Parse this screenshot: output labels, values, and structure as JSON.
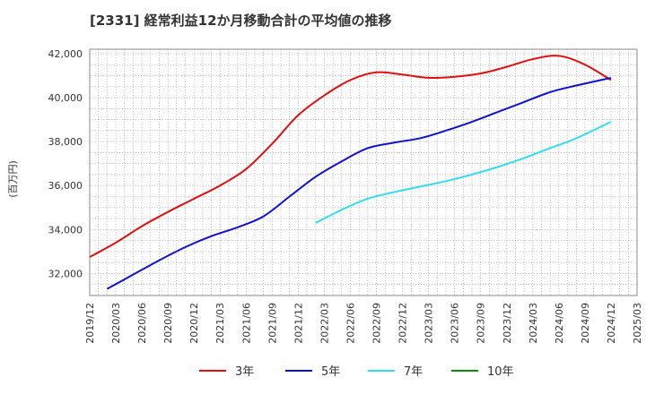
{
  "chart_data": {
    "type": "line",
    "title": "[2331]  経常利益12か月移動合計の平均値の推移",
    "xlabel": "",
    "ylabel": "(百万円)",
    "ylim": [
      31000,
      42200
    ],
    "y_ticks": [
      32000,
      34000,
      36000,
      38000,
      40000,
      42000
    ],
    "y_tick_labels": [
      "32,000",
      "34,000",
      "36,000",
      "38,000",
      "40,000",
      "42,000"
    ],
    "x_range": [
      "2019-12",
      "2025-03"
    ],
    "x_tick_labels": [
      "2019/12",
      "2020/03",
      "2020/06",
      "2020/09",
      "2020/12",
      "2021/03",
      "2021/06",
      "2021/09",
      "2021/12",
      "2022/03",
      "2022/06",
      "2022/09",
      "2022/12",
      "2023/03",
      "2023/06",
      "2023/09",
      "2023/12",
      "2024/03",
      "2024/06",
      "2024/09",
      "2024/12",
      "2025/03"
    ],
    "grid": true,
    "legend_position": "bottom",
    "series": [
      {
        "name": "3年",
        "color": "#dd1111",
        "points": [
          [
            "2019-12",
            32750
          ],
          [
            "2020-03",
            33400
          ],
          [
            "2020-06",
            34150
          ],
          [
            "2020-09",
            34800
          ],
          [
            "2020-12",
            35400
          ],
          [
            "2021-03",
            36000
          ],
          [
            "2021-06",
            36750
          ],
          [
            "2021-09",
            37900
          ],
          [
            "2021-12",
            39200
          ],
          [
            "2022-03",
            40100
          ],
          [
            "2022-06",
            40800
          ],
          [
            "2022-09",
            41150
          ],
          [
            "2022-12",
            41050
          ],
          [
            "2023-03",
            40900
          ],
          [
            "2023-06",
            40950
          ],
          [
            "2023-09",
            41100
          ],
          [
            "2023-12",
            41400
          ],
          [
            "2024-03",
            41750
          ],
          [
            "2024-06",
            41900
          ],
          [
            "2024-09",
            41500
          ],
          [
            "2024-12",
            40800
          ]
        ]
      },
      {
        "name": "5年",
        "color": "#1111cc",
        "points": [
          [
            "2020-02",
            31300
          ],
          [
            "2020-05",
            31950
          ],
          [
            "2020-08",
            32600
          ],
          [
            "2020-11",
            33200
          ],
          [
            "2021-02",
            33700
          ],
          [
            "2021-05",
            34100
          ],
          [
            "2021-08",
            34600
          ],
          [
            "2021-11",
            35500
          ],
          [
            "2022-02",
            36400
          ],
          [
            "2022-05",
            37100
          ],
          [
            "2022-08",
            37700
          ],
          [
            "2022-11",
            37950
          ],
          [
            "2023-02",
            38150
          ],
          [
            "2023-05",
            38500
          ],
          [
            "2023-08",
            38900
          ],
          [
            "2023-11",
            39350
          ],
          [
            "2024-02",
            39800
          ],
          [
            "2024-05",
            40250
          ],
          [
            "2024-08",
            40550
          ],
          [
            "2024-12",
            40900
          ]
        ]
      },
      {
        "name": "7年",
        "color": "#33ddee",
        "points": [
          [
            "2022-02",
            34300
          ],
          [
            "2022-05",
            34900
          ],
          [
            "2022-08",
            35400
          ],
          [
            "2022-11",
            35700
          ],
          [
            "2023-02",
            35950
          ],
          [
            "2023-05",
            36200
          ],
          [
            "2023-08",
            36500
          ],
          [
            "2023-11",
            36850
          ],
          [
            "2024-02",
            37250
          ],
          [
            "2024-05",
            37700
          ],
          [
            "2024-08",
            38150
          ],
          [
            "2024-12",
            38900
          ]
        ]
      },
      {
        "name": "10年",
        "color": "#118811",
        "points": []
      }
    ]
  }
}
